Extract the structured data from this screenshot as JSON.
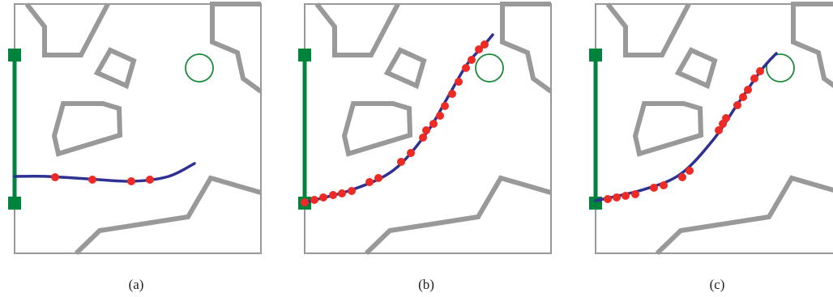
{
  "panels": [
    {
      "caption": "(a)",
      "path": [
        [
          0,
          -33
        ],
        [
          40,
          -33
        ],
        [
          90,
          -30
        ],
        [
          145,
          -27
        ],
        [
          190,
          -33
        ],
        [
          222,
          -49
        ]
      ],
      "waypoints": [
        [
          50,
          -32
        ],
        [
          96,
          -29
        ],
        [
          144,
          -27
        ],
        [
          167,
          -29
        ]
      ]
    },
    {
      "caption": "(b)",
      "path": [
        [
          0,
          -1
        ],
        [
          60,
          -17
        ],
        [
          110,
          -41
        ],
        [
          150,
          -86
        ],
        [
          175,
          -128
        ],
        [
          200,
          -171
        ],
        [
          222,
          -196
        ],
        [
          232,
          -208
        ]
      ],
      "waypoints": [
        [
          0,
          -1
        ],
        [
          12,
          -4
        ],
        [
          23,
          -7
        ],
        [
          35,
          -10
        ],
        [
          46,
          -12
        ],
        [
          58,
          -15
        ],
        [
          80,
          -26
        ],
        [
          91,
          -31
        ],
        [
          119,
          -51
        ],
        [
          131,
          -62
        ],
        [
          146,
          -81
        ],
        [
          150,
          -90
        ],
        [
          159,
          -98
        ],
        [
          167,
          -108
        ],
        [
          173,
          -120
        ],
        [
          182,
          -135
        ],
        [
          190,
          -150
        ],
        [
          199,
          -167
        ],
        [
          206,
          -177
        ],
        [
          215,
          -190
        ],
        [
          222,
          -196
        ]
      ]
    },
    {
      "caption": "(c)",
      "path": [
        [
          0,
          -3
        ],
        [
          60,
          -17
        ],
        [
          105,
          -36
        ],
        [
          145,
          -78
        ],
        [
          175,
          -122
        ],
        [
          205,
          -165
        ],
        [
          223,
          -185
        ]
      ],
      "waypoints": [
        [
          15,
          -5
        ],
        [
          26,
          -7
        ],
        [
          37,
          -9
        ],
        [
          49,
          -11
        ],
        [
          72,
          -19
        ],
        [
          84,
          -22
        ],
        [
          107,
          -32
        ],
        [
          116,
          -40
        ],
        [
          152,
          -90
        ],
        [
          157,
          -98
        ],
        [
          161,
          -105
        ],
        [
          175,
          -121
        ],
        [
          182,
          -131
        ],
        [
          188,
          -140
        ],
        [
          196,
          -154
        ],
        [
          203,
          -163
        ]
      ]
    }
  ]
}
